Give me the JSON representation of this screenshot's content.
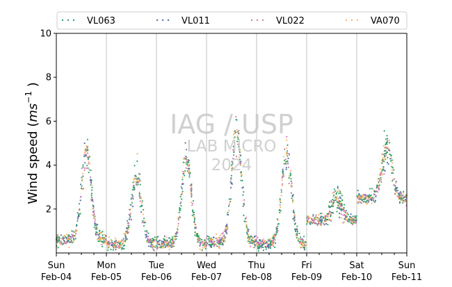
{
  "chart_data": {
    "type": "scatter",
    "title": "",
    "ylabel_main": "Wind speed (",
    "ylabel_unit": "ms",
    "ylabel_exp": "−1",
    "ylabel_close": " )",
    "xlabel": "",
    "ylim": [
      0,
      10
    ],
    "xlim": [
      "2024-02-04 00:00",
      "2024-02-11 00:00"
    ],
    "yticks": [
      2,
      4,
      6,
      8,
      10
    ],
    "xticks": [
      {
        "day": "Sun",
        "date": "Feb-04"
      },
      {
        "day": "Mon",
        "date": "Feb-05"
      },
      {
        "day": "Tue",
        "date": "Feb-06"
      },
      {
        "day": "Wed",
        "date": "Feb-07"
      },
      {
        "day": "Thu",
        "date": "Feb-08"
      },
      {
        "day": "Fri",
        "date": "Feb-09"
      },
      {
        "day": "Sat",
        "date": "Feb-10"
      },
      {
        "day": "Sun",
        "date": "Feb-11"
      }
    ],
    "grid": "vertical lines at day boundaries",
    "legend_position": "top, above plot",
    "series": [
      {
        "name": "VL063",
        "color": "#2ca25f"
      },
      {
        "name": "VL011",
        "color": "#5b6ea8"
      },
      {
        "name": "VL022",
        "color": "#d17ab0"
      },
      {
        "name": "VA070",
        "color": "#fdb462"
      }
    ],
    "daily_profile_note_values": [
      {
        "date": "2024-02-04",
        "night_mean": 0.6,
        "day_peak": 4.5
      },
      {
        "date": "2024-02-05",
        "night_mean": 0.4,
        "day_peak": 3.5
      },
      {
        "date": "2024-02-06",
        "night_mean": 0.4,
        "day_peak": 4.2
      },
      {
        "date": "2024-02-07",
        "night_mean": 0.5,
        "day_peak": 5.5
      },
      {
        "date": "2024-02-08",
        "night_mean": 0.4,
        "day_peak": 4.6
      },
      {
        "date": "2024-02-09",
        "night_mean": 1.5,
        "day_peak": 2.5
      },
      {
        "date": "2024-02-10",
        "night_mean": 2.5,
        "day_peak": 4.8
      }
    ],
    "watermark": {
      "line1": "IAG / USP",
      "line2": "LAB MICRO",
      "line3": "2024"
    }
  }
}
